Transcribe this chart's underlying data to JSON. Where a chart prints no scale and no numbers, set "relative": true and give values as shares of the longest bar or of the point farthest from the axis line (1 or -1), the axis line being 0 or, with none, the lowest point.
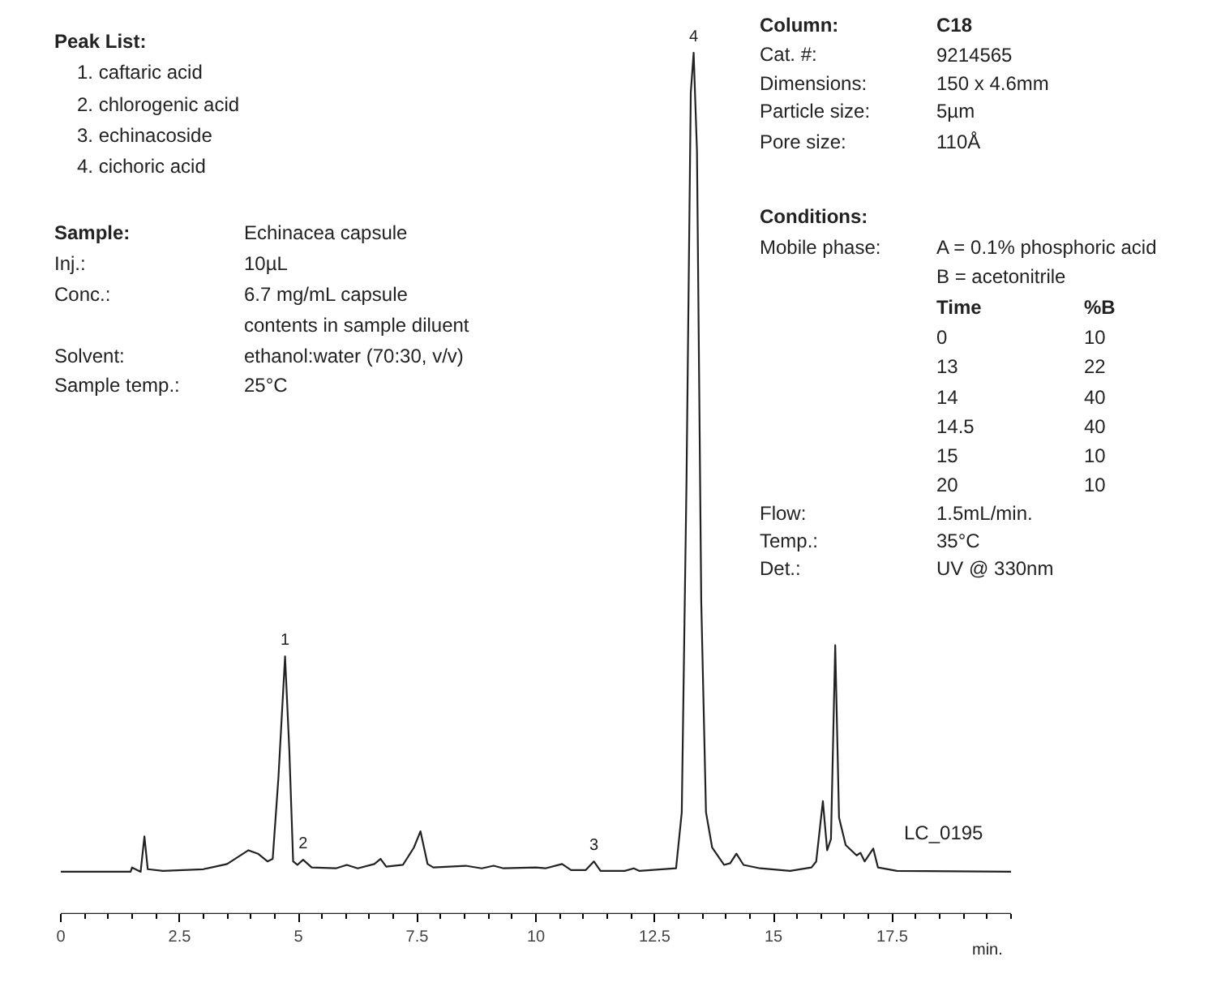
{
  "chart_data": {
    "type": "line",
    "relative": true,
    "xlabel": "min.",
    "xlim": [
      0,
      20
    ],
    "xticks": [
      0,
      2.5,
      5,
      7.5,
      10,
      12.5,
      15,
      17.5
    ],
    "grid": false,
    "marker": "none",
    "line_style": "solid",
    "series": [
      {
        "color": "#222222",
        "x": [
          0,
          1.47,
          1.5,
          1.68,
          1.76,
          1.83,
          2.15,
          3.0,
          3.5,
          3.95,
          4.15,
          4.35,
          4.46,
          4.58,
          4.72,
          4.81,
          4.89,
          4.98,
          5.1,
          5.28,
          5.79,
          6.02,
          6.25,
          6.6,
          6.73,
          6.85,
          7.2,
          7.43,
          7.57,
          7.72,
          7.84,
          8.52,
          8.86,
          9.11,
          9.32,
          10.0,
          10.2,
          10.55,
          10.74,
          11.05,
          11.22,
          11.36,
          11.87,
          12.06,
          12.18,
          12.95,
          13.07,
          13.17,
          13.26,
          13.32,
          13.39,
          13.48,
          13.58,
          13.71,
          13.96,
          14.09,
          14.22,
          14.37,
          14.72,
          15.35,
          15.8,
          15.9,
          16.04,
          16.13,
          16.21,
          16.3,
          16.38,
          16.52,
          16.75,
          16.83,
          16.92,
          17.1,
          17.2,
          17.6,
          20.0
        ],
        "values": [
          0.049,
          0.049,
          0.054,
          0.049,
          0.09,
          0.052,
          0.05,
          0.052,
          0.058,
          0.074,
          0.07,
          0.061,
          0.064,
          0.158,
          0.299,
          0.19,
          0.061,
          0.057,
          0.063,
          0.054,
          0.053,
          0.057,
          0.053,
          0.058,
          0.064,
          0.055,
          0.057,
          0.077,
          0.096,
          0.058,
          0.054,
          0.056,
          0.053,
          0.056,
          0.053,
          0.054,
          0.053,
          0.058,
          0.051,
          0.051,
          0.061,
          0.05,
          0.05,
          0.053,
          0.05,
          0.053,
          0.118,
          0.504,
          0.954,
          1,
          0.886,
          0.363,
          0.118,
          0.077,
          0.057,
          0.059,
          0.07,
          0.057,
          0.053,
          0.05,
          0.054,
          0.061,
          0.131,
          0.074,
          0.087,
          0.312,
          0.112,
          0.08,
          0.068,
          0.071,
          0.061,
          0.076,
          0.054,
          0.05,
          0.049
        ]
      }
    ],
    "annotations": [
      {
        "text": "1",
        "x": 4.72,
        "y": 0.299
      },
      {
        "text": "2",
        "x": 5.1,
        "y": 0.063
      },
      {
        "text": "3",
        "x": 11.22,
        "y": 0.061
      },
      {
        "text": "4",
        "x": 13.32,
        "y": 1
      },
      "Peak List:",
      "1.  caftaric acid",
      "2.  chlorogenic acid",
      "3.  echinacoside",
      "4.  cichoric acid",
      "Sample:",
      "Echinacea capsule",
      "Inj.:",
      "10µL",
      "Conc.:",
      "6.7 mg/mL capsule",
      "contents in sample diluent",
      "Solvent:",
      "ethanol:water (70:30, v/v)",
      "Sample temp.:",
      "25°C",
      "Column:",
      "C18",
      "Cat. #:",
      "9214565",
      "Dimensions:",
      "150 x 4.6mm",
      "Particle size:",
      "5µm",
      "Pore size:",
      "110Å",
      "Conditions:",
      "Mobile phase:",
      "A = 0.1% phosphoric acid",
      "B = acetonitrile",
      "Time",
      "%B",
      "0",
      "10",
      "13",
      "22",
      "14",
      "40",
      "14.5",
      "40",
      "15",
      "10",
      "20",
      "10",
      "Flow:",
      "1.5mL/min.",
      "Temp.:",
      "35°C",
      "Det.:",
      "UV @ 330nm",
      "LC_0195"
    ]
  }
}
